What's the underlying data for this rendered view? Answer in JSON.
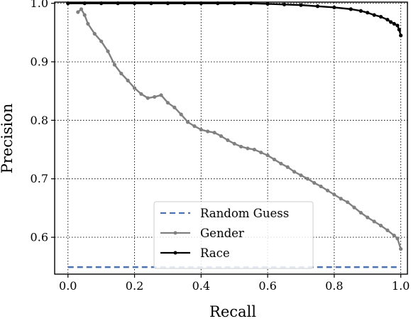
{
  "chart_data": {
    "type": "line",
    "xlabel": "Recall",
    "ylabel": "Precision",
    "xlim": [
      -0.04,
      1.02
    ],
    "ylim": [
      0.537,
      1.002
    ],
    "xticks": [
      "0.0",
      "0.2",
      "0.4",
      "0.6",
      "0.8",
      "1.0"
    ],
    "yticks": [
      "0.6",
      "0.7",
      "0.8",
      "0.9",
      "1.0"
    ],
    "xtick_values": [
      0.0,
      0.2,
      0.4,
      0.6,
      0.8,
      1.0
    ],
    "ytick_values": [
      0.6,
      0.7,
      0.8,
      0.9,
      1.0
    ],
    "grid": true,
    "legend_position": "lower-center",
    "series": [
      {
        "name": "Random Guess",
        "style": "dashed",
        "color": "#4c72b0",
        "x": [
          0.0,
          1.0
        ],
        "y": [
          0.549,
          0.549
        ]
      },
      {
        "name": "Gender",
        "style": "line-with-dots",
        "color": "#808080",
        "x": [
          0.03,
          0.04,
          0.05,
          0.06,
          0.08,
          0.1,
          0.12,
          0.14,
          0.16,
          0.18,
          0.2,
          0.22,
          0.24,
          0.26,
          0.28,
          0.3,
          0.32,
          0.34,
          0.36,
          0.38,
          0.4,
          0.42,
          0.44,
          0.46,
          0.48,
          0.5,
          0.52,
          0.54,
          0.56,
          0.58,
          0.6,
          0.62,
          0.64,
          0.66,
          0.68,
          0.7,
          0.72,
          0.74,
          0.76,
          0.78,
          0.8,
          0.82,
          0.84,
          0.86,
          0.88,
          0.9,
          0.92,
          0.94,
          0.96,
          0.98,
          0.99,
          1.0
        ],
        "y": [
          0.985,
          0.99,
          0.98,
          0.965,
          0.948,
          0.935,
          0.918,
          0.895,
          0.88,
          0.868,
          0.855,
          0.845,
          0.838,
          0.84,
          0.843,
          0.83,
          0.822,
          0.81,
          0.797,
          0.79,
          0.784,
          0.781,
          0.779,
          0.773,
          0.766,
          0.76,
          0.755,
          0.752,
          0.75,
          0.745,
          0.74,
          0.733,
          0.726,
          0.72,
          0.712,
          0.706,
          0.7,
          0.693,
          0.687,
          0.68,
          0.673,
          0.666,
          0.66,
          0.651,
          0.642,
          0.634,
          0.627,
          0.62,
          0.612,
          0.603,
          0.598,
          0.58
        ]
      },
      {
        "name": "Race",
        "style": "line-with-dots",
        "color": "#000000",
        "x": [
          0.0,
          0.05,
          0.1,
          0.15,
          0.2,
          0.25,
          0.3,
          0.35,
          0.4,
          0.45,
          0.5,
          0.55,
          0.6,
          0.65,
          0.7,
          0.75,
          0.8,
          0.85,
          0.88,
          0.9,
          0.92,
          0.94,
          0.96,
          0.97,
          0.98,
          0.99,
          0.995,
          1.0
        ],
        "y": [
          1.0,
          1.0,
          1.0,
          1.0,
          1.0,
          1.0,
          1.0,
          1.0,
          1.0,
          1.0,
          1.0,
          1.0,
          0.999,
          0.998,
          0.997,
          0.995,
          0.993,
          0.99,
          0.987,
          0.984,
          0.98,
          0.977,
          0.972,
          0.968,
          0.965,
          0.962,
          0.955,
          0.945
        ]
      }
    ]
  }
}
